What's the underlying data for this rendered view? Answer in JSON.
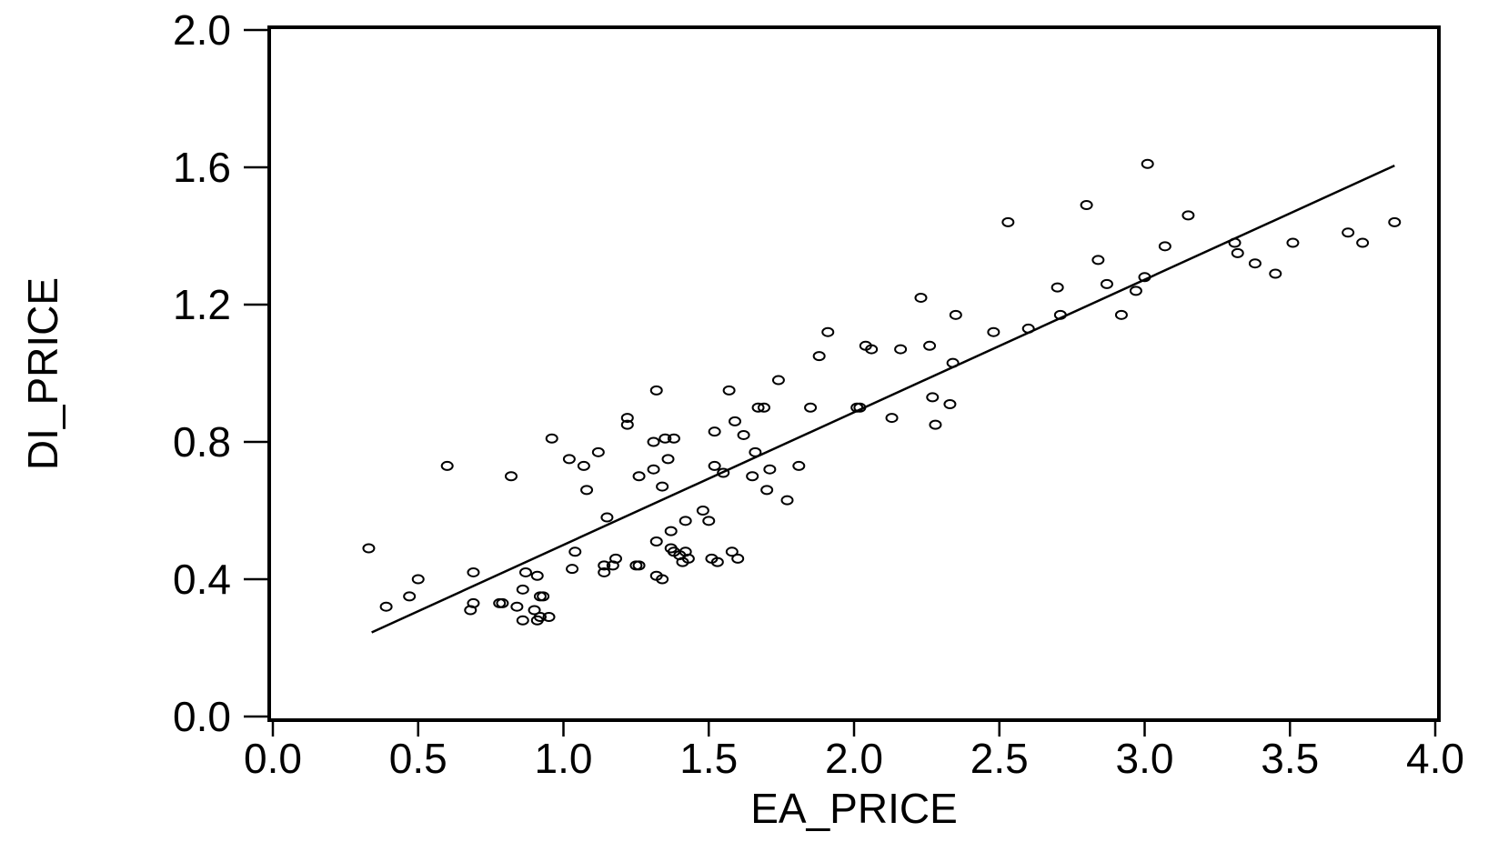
{
  "chart_data": {
    "type": "scatter",
    "xlabel": "EA_PRICE",
    "ylabel": "DI_PRICE",
    "xlim": [
      0.0,
      4.0
    ],
    "ylim": [
      0.0,
      2.0
    ],
    "xticks": [
      "0.0",
      "0.5",
      "1.0",
      "1.5",
      "2.0",
      "2.5",
      "3.0",
      "3.5",
      "4.0"
    ],
    "yticks": [
      "0.0",
      "0.4",
      "0.8",
      "1.2",
      "1.6",
      "2.0"
    ],
    "grid": false,
    "marker": "open-circle",
    "fit_line": {
      "x": [
        0.34,
        3.86
      ],
      "y": [
        0.245,
        1.605
      ]
    },
    "points": [
      [
        0.33,
        0.49
      ],
      [
        0.39,
        0.32
      ],
      [
        0.47,
        0.35
      ],
      [
        0.5,
        0.4
      ],
      [
        0.6,
        0.73
      ],
      [
        0.68,
        0.31
      ],
      [
        0.69,
        0.42
      ],
      [
        0.69,
        0.33
      ],
      [
        0.78,
        0.33
      ],
      [
        0.79,
        0.33
      ],
      [
        0.82,
        0.7
      ],
      [
        0.84,
        0.32
      ],
      [
        0.86,
        0.28
      ],
      [
        0.86,
        0.37
      ],
      [
        0.87,
        0.42
      ],
      [
        0.9,
        0.31
      ],
      [
        0.91,
        0.28
      ],
      [
        0.91,
        0.41
      ],
      [
        0.92,
        0.35
      ],
      [
        0.92,
        0.29
      ],
      [
        0.93,
        0.35
      ],
      [
        0.95,
        0.29
      ],
      [
        0.96,
        0.81
      ],
      [
        1.02,
        0.75
      ],
      [
        1.03,
        0.43
      ],
      [
        1.04,
        0.48
      ],
      [
        1.07,
        0.73
      ],
      [
        1.08,
        0.66
      ],
      [
        1.12,
        0.77
      ],
      [
        1.14,
        0.42
      ],
      [
        1.14,
        0.44
      ],
      [
        1.15,
        0.58
      ],
      [
        1.17,
        0.44
      ],
      [
        1.18,
        0.46
      ],
      [
        1.22,
        0.87
      ],
      [
        1.22,
        0.85
      ],
      [
        1.25,
        0.44
      ],
      [
        1.26,
        0.7
      ],
      [
        1.26,
        0.44
      ],
      [
        1.31,
        0.72
      ],
      [
        1.31,
        0.8
      ],
      [
        1.32,
        0.51
      ],
      [
        1.32,
        0.95
      ],
      [
        1.32,
        0.41
      ],
      [
        1.34,
        0.4
      ],
      [
        1.34,
        0.67
      ],
      [
        1.35,
        0.81
      ],
      [
        1.36,
        0.75
      ],
      [
        1.37,
        0.49
      ],
      [
        1.37,
        0.54
      ],
      [
        1.38,
        0.81
      ],
      [
        1.38,
        0.48
      ],
      [
        1.4,
        0.47
      ],
      [
        1.41,
        0.45
      ],
      [
        1.42,
        0.57
      ],
      [
        1.42,
        0.48
      ],
      [
        1.43,
        0.46
      ],
      [
        1.48,
        0.6
      ],
      [
        1.5,
        0.57
      ],
      [
        1.51,
        0.46
      ],
      [
        1.52,
        0.83
      ],
      [
        1.52,
        0.73
      ],
      [
        1.53,
        0.45
      ],
      [
        1.55,
        0.71
      ],
      [
        1.57,
        0.95
      ],
      [
        1.58,
        0.48
      ],
      [
        1.59,
        0.86
      ],
      [
        1.6,
        0.46
      ],
      [
        1.62,
        0.82
      ],
      [
        1.65,
        0.7
      ],
      [
        1.66,
        0.77
      ],
      [
        1.67,
        0.9
      ],
      [
        1.69,
        0.9
      ],
      [
        1.7,
        0.66
      ],
      [
        1.71,
        0.72
      ],
      [
        1.74,
        0.98
      ],
      [
        1.77,
        0.63
      ],
      [
        1.81,
        0.73
      ],
      [
        1.85,
        0.9
      ],
      [
        1.88,
        1.05
      ],
      [
        1.91,
        1.12
      ],
      [
        2.01,
        0.9
      ],
      [
        2.02,
        0.9
      ],
      [
        2.04,
        1.08
      ],
      [
        2.06,
        1.07
      ],
      [
        2.13,
        0.87
      ],
      [
        2.16,
        1.07
      ],
      [
        2.23,
        1.22
      ],
      [
        2.26,
        1.08
      ],
      [
        2.27,
        0.93
      ],
      [
        2.28,
        0.85
      ],
      [
        2.33,
        0.91
      ],
      [
        2.34,
        1.03
      ],
      [
        2.35,
        1.17
      ],
      [
        2.48,
        1.12
      ],
      [
        2.53,
        1.44
      ],
      [
        2.6,
        1.13
      ],
      [
        2.7,
        1.25
      ],
      [
        2.71,
        1.17
      ],
      [
        2.8,
        1.49
      ],
      [
        2.84,
        1.33
      ],
      [
        2.87,
        1.26
      ],
      [
        2.92,
        1.17
      ],
      [
        2.97,
        1.24
      ],
      [
        3.0,
        1.28
      ],
      [
        3.01,
        1.61
      ],
      [
        3.07,
        1.37
      ],
      [
        3.15,
        1.46
      ],
      [
        3.31,
        1.38
      ],
      [
        3.32,
        1.35
      ],
      [
        3.38,
        1.32
      ],
      [
        3.45,
        1.29
      ],
      [
        3.51,
        1.38
      ],
      [
        3.7,
        1.41
      ],
      [
        3.75,
        1.38
      ],
      [
        3.86,
        1.44
      ]
    ]
  }
}
